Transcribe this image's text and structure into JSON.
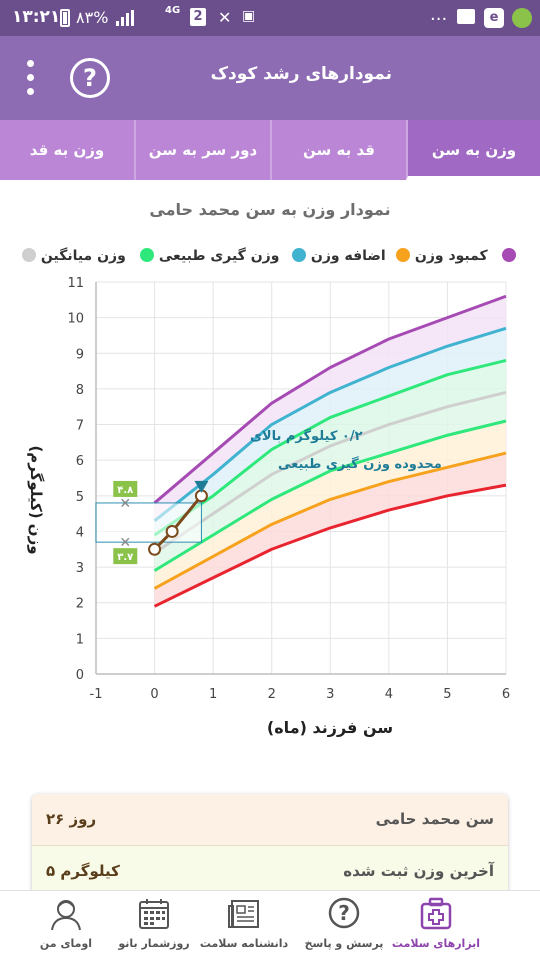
{
  "status_bar": {
    "time": "۱۳:۲۱",
    "battery": "۸۳%",
    "network": "4G",
    "sim": "2",
    "more": "..."
  },
  "header": {
    "title": "نمودارهای رشد کودک",
    "help_icon": "question-icon",
    "menu_icon": "more-vert-icon"
  },
  "tabs": [
    {
      "label": "وزن به سن",
      "active": true
    },
    {
      "label": "قد به سن",
      "active": false
    },
    {
      "label": "دور سر به سن",
      "active": false
    },
    {
      "label": "وزن به قد",
      "active": false
    }
  ],
  "chart_title": "نمودار وزن به سن محمد حامی",
  "legend": [
    {
      "label": "وزن میانگین",
      "color": "#cfcfcf"
    },
    {
      "label": "وزن گیری طبیعی",
      "color": "#2ee87c"
    },
    {
      "label": "اضافه وزن",
      "color": "#3fb3d0"
    },
    {
      "label": "کمبود وزن",
      "color": "#f6a21c"
    },
    {
      "label": "",
      "color": "#a64ab4"
    }
  ],
  "chart_data": {
    "type": "line",
    "xlabel": "سن فرزند (ماه)",
    "ylabel": "وزن (کیلوگرم)",
    "xlim": [
      -1,
      6
    ],
    "ylim": [
      0,
      11
    ],
    "xticks": [
      "-1",
      "0",
      "1",
      "2",
      "3",
      "4",
      "5",
      "6"
    ],
    "yticks": [
      "0",
      "1",
      "2",
      "3",
      "4",
      "5",
      "6",
      "7",
      "8",
      "9",
      "10",
      "11"
    ],
    "grid": true,
    "x": [
      0,
      1,
      2,
      3,
      4,
      5,
      6
    ],
    "series": [
      {
        "color": "#a64ab4",
        "values": [
          4.8,
          6.2,
          7.6,
          8.6,
          9.4,
          10.0,
          10.6
        ]
      },
      {
        "color": "#3fb3d0",
        "values": [
          4.3,
          5.6,
          7.0,
          7.9,
          8.6,
          9.2,
          9.7
        ]
      },
      {
        "color": "#2ee87c",
        "values": [
          3.9,
          5.0,
          6.3,
          7.2,
          7.8,
          8.4,
          8.8
        ]
      },
      {
        "color": "#cfcfcf",
        "values": [
          3.4,
          4.5,
          5.6,
          6.4,
          7.0,
          7.5,
          7.9
        ]
      },
      {
        "color": "#2ee87c",
        "values": [
          2.9,
          3.9,
          4.9,
          5.7,
          6.2,
          6.7,
          7.1
        ]
      },
      {
        "color": "#f6a21c",
        "values": [
          2.4,
          3.3,
          4.2,
          4.9,
          5.4,
          5.8,
          6.2
        ]
      },
      {
        "color": "#e8242f",
        "values": [
          1.9,
          2.7,
          3.5,
          4.1,
          4.6,
          5.0,
          5.3
        ]
      }
    ],
    "child_series": {
      "x": [
        0,
        0.3,
        0.8
      ],
      "values": [
        3.5,
        4.0,
        5.0
      ]
    },
    "range_markers": [
      {
        "x": -0.5,
        "value": 4.8,
        "label": "۴.۸"
      },
      {
        "x": -0.5,
        "value": 3.7,
        "label": "۳.۷"
      }
    ],
    "annotation": [
      "۰/۲ کیلوگرم بالای",
      "محدوده وزن گیری طبیعی"
    ]
  },
  "info": [
    {
      "label": "سن محمد حامی",
      "value": "۲۶ روز",
      "bg": "#fdf1e5"
    },
    {
      "label": "آخرین وزن ثبت شده",
      "value": "۵ کیلوگرم",
      "bg": "#f8fbe8"
    }
  ],
  "bottom_nav": [
    {
      "label": "ابزارهای سلامت",
      "icon": "medical-kit-icon",
      "active": true
    },
    {
      "label": "پرسش و پاسخ",
      "icon": "question-bubble-icon",
      "active": false
    },
    {
      "label": "دانشنامه سلامت",
      "icon": "newspaper-icon",
      "active": false
    },
    {
      "label": "روزشمار بانو",
      "icon": "calendar-icon",
      "active": false
    },
    {
      "label": "اومای من",
      "icon": "user-profile-icon",
      "active": false
    }
  ]
}
